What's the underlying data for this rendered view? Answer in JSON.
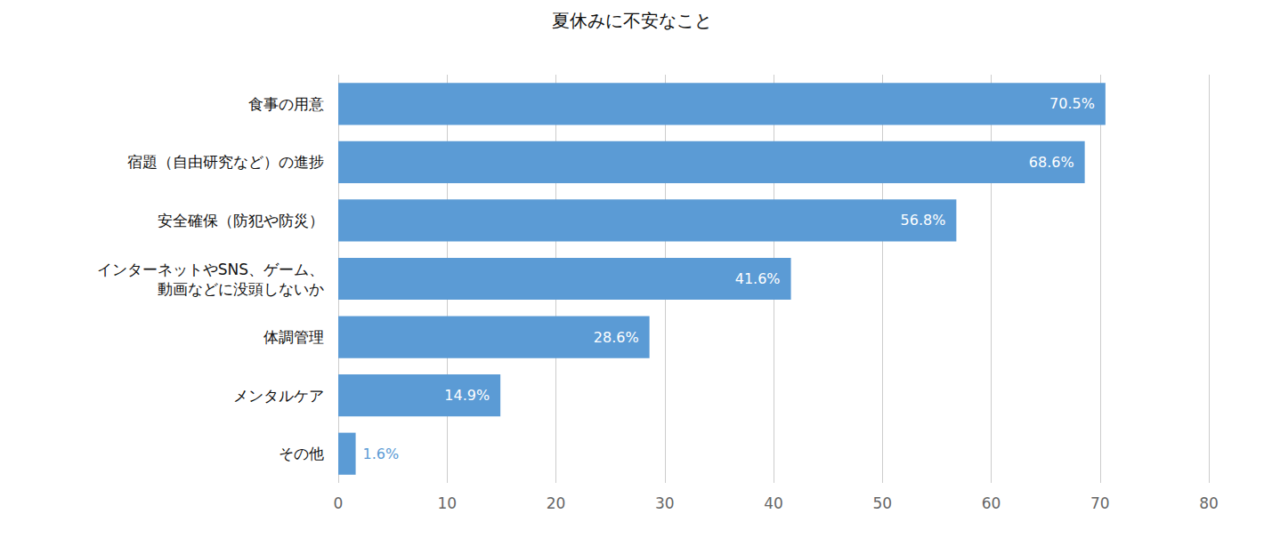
{
  "chart_data": {
    "type": "bar",
    "title": "夏休みに不安なこと",
    "orientation": "horizontal",
    "categories": [
      "食事の用意",
      "宿題（自由研究など）の進捗",
      "安全確保（防犯や防災）",
      "インターネットやSNS、ゲーム、\n動画などに没頭しないか",
      "体調管理",
      "メンタルケア",
      "その他"
    ],
    "values": [
      70.5,
      68.6,
      56.8,
      41.6,
      28.6,
      14.9,
      1.6
    ],
    "value_labels": [
      "70.5%",
      "68.6%",
      "56.8%",
      "41.6%",
      "28.6%",
      "14.9%",
      "1.6%"
    ],
    "color": "#5b9bd5",
    "xlim": [
      0,
      80
    ],
    "xticks": [
      0,
      10,
      20,
      30,
      40,
      50,
      60,
      70,
      80
    ],
    "grid": true,
    "data_labels": true
  }
}
